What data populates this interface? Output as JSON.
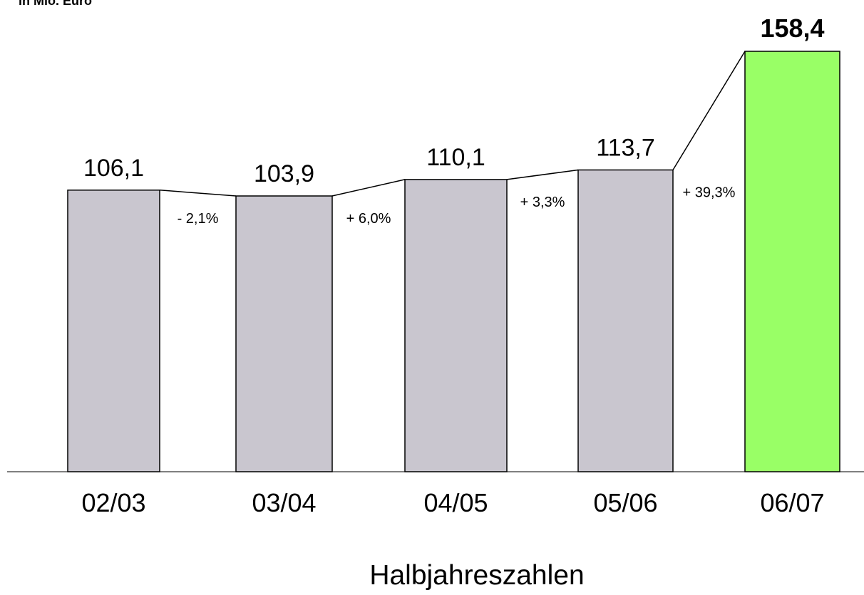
{
  "unit_label": "in Mio. Euro",
  "chart_data": {
    "type": "bar",
    "title": "",
    "ylabel": "in Mio. Euro",
    "xlabel": "Halbjahreszahlen",
    "categories": [
      "02/03",
      "03/04",
      "04/05",
      "05/06",
      "06/07"
    ],
    "values": [
      106.1,
      103.9,
      110.1,
      113.7,
      158.4
    ],
    "value_labels": [
      "106,1",
      "103,9",
      "110,1",
      "113,7",
      "158,4"
    ],
    "changes": [
      "- 2,1%",
      "+ 6,0%",
      "+ 3,3%",
      "+ 39,3%"
    ],
    "ylim": [
      0,
      158.4
    ],
    "grid": false,
    "colors": {
      "bar": "#c9c6cf",
      "highlight": "#99ff66",
      "stroke": "#000000"
    }
  }
}
